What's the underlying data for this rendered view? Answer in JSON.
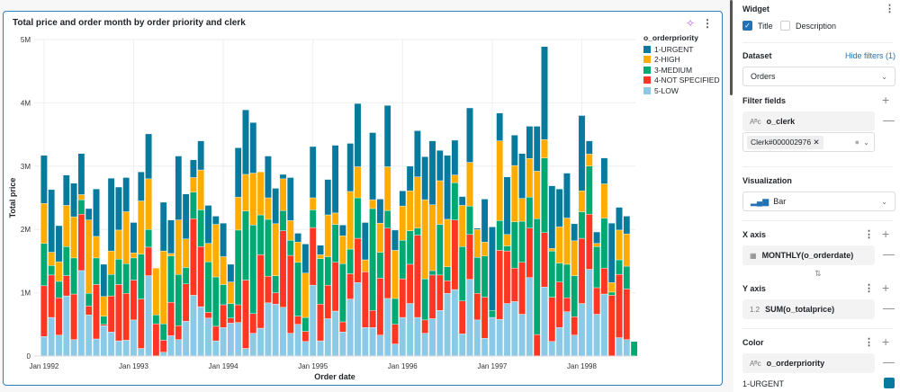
{
  "widget": {
    "title": "Total price and order month by order priority and clerk",
    "ai_icon": "sparkle-icon",
    "menu_icon": "kebab-icon"
  },
  "legend": {
    "title": "o_orderpriority",
    "items": [
      {
        "label": "1-URGENT",
        "color": "#077A9D"
      },
      {
        "label": "2-HIGH",
        "color": "#FFAB00"
      },
      {
        "label": "3-MEDIUM",
        "color": "#00A972"
      },
      {
        "label": "4-NOT SPECIFIED",
        "color": "#FF3621"
      },
      {
        "label": "5-LOW",
        "color": "#8BCAE7"
      }
    ]
  },
  "chart_data": {
    "type": "bar",
    "stacked": true,
    "xlabel": "Order date",
    "ylabel": "Total price",
    "ylim": [
      0,
      5000000
    ],
    "yticks": [
      "0",
      "1M",
      "2M",
      "3M",
      "4M",
      "5M"
    ],
    "xticks": [
      "Jan 1992",
      "Jan 1993",
      "Jan 1994",
      "Jan 1995",
      "Jan 1996",
      "Jan 1997",
      "Jan 1998"
    ],
    "x_start": "1992-01",
    "x_end": "1998-08",
    "x_unit": "month",
    "grid": true,
    "legend": "top-right",
    "series_order_bottom_to_top": [
      "5-LOW",
      "4-NOT SPECIFIED",
      "3-MEDIUM",
      "2-HIGH",
      "1-URGENT"
    ],
    "values_millions": [
      [
        0.31,
        0.8,
        0.67,
        0.63,
        0.76
      ],
      [
        0.61,
        0.67,
        0.15,
        0.21,
        0.99
      ],
      [
        0.33,
        0.59,
        0.26,
        0.31,
        0.57
      ],
      [
        0.95,
        0.32,
        0.46,
        0.65,
        0.48
      ],
      [
        0.26,
        0.72,
        0.57,
        0.65,
        0.53
      ],
      [
        1.35,
        0.89,
        0.23,
        0.08,
        0.65
      ],
      [
        0.65,
        0.14,
        0.2,
        1.16,
        0.18
      ],
      [
        0.27,
        0.86,
        0.42,
        0.34,
        0.75
      ],
      [
        0.48,
        0.02,
        0.13,
        0.31,
        0.51
      ],
      [
        0.38,
        0.57,
        0.34,
        0.37,
        1.15
      ],
      [
        0.24,
        0.89,
        0.4,
        0.46,
        0.68
      ],
      [
        0.25,
        0.74,
        0.47,
        0.82,
        0.54
      ],
      [
        0.57,
        0.63,
        0.35,
        0.08,
        0.48
      ],
      [
        0.12,
        0.78,
        0.71,
        0.84,
        0.46
      ],
      [
        1.27,
        0.45,
        0.28,
        0.8,
        0.71
      ],
      [
        0,
        0.51,
        0.14,
        0.74,
        0
      ],
      [
        0.06,
        0.19,
        0.26,
        1.15,
        0.77
      ],
      [
        0.32,
        0.53,
        0.73,
        0.04,
        0.53
      ],
      [
        0.26,
        0.22,
        0.81,
        0.86,
        1.01
      ],
      [
        0.55,
        0.59,
        0.26,
        0.45,
        0.71
      ],
      [
        0.96,
        1.21,
        0.42,
        0.23,
        0.28
      ],
      [
        0.78,
        0.95,
        0.58,
        0.63,
        0.46
      ],
      [
        0.6,
        0.09,
        0.8,
        0.29,
        0.6
      ],
      [
        0.24,
        0.23,
        0.78,
        0.83,
        0.13
      ],
      [
        0.45,
        0.36,
        0.32,
        0.44,
        0.53
      ],
      [
        0.52,
        0.08,
        0.23,
        0.34,
        0.28
      ],
      [
        0.53,
        0.28,
        1.18,
        0.52,
        0.78
      ],
      [
        0.12,
        1.08,
        1.09,
        0.58,
        1.02
      ],
      [
        0.36,
        0.31,
        1.4,
        0.82,
        0.8
      ],
      [
        0.44,
        1.16,
        0.63,
        0.68,
        0
      ],
      [
        0.84,
        0.42,
        0.9,
        0.34,
        0.66
      ],
      [
        0.82,
        0.18,
        0.27,
        0.82,
        0.56
      ],
      [
        0.77,
        1.21,
        0.32,
        0.5,
        0.07
      ],
      [
        0.36,
        1.23,
        0.24,
        0.31,
        0.68
      ],
      [
        0.5,
        0.13,
        0.85,
        0.32,
        0.14
      ],
      [
        0.23,
        0.16,
        0.22,
        0.7,
        0.46
      ],
      [
        1.12,
        0.91,
        0.28,
        0.19,
        0.81
      ],
      [
        0.24,
        0.58,
        0.72,
        0.06,
        0.15
      ],
      [
        0.59,
        0.53,
        0.45,
        0.66,
        0.56
      ],
      [
        0.71,
        0.77,
        0.6,
        0.18,
        1.07
      ],
      [
        0.38,
        0.16,
        0.92,
        0.44,
        0.17
      ],
      [
        0.9,
        0.4,
        0.39,
        0.91,
        0.76
      ],
      [
        1.16,
        0.7,
        0.64,
        0.49,
        1.0
      ],
      [
        0.45,
        0.88,
        0,
        0.19,
        0.59
      ],
      [
        0.45,
        0.27,
        1.61,
        0.14,
        1.06
      ],
      [
        0.33,
        0.9,
        0.41,
        0.46,
        0.38
      ],
      [
        0.91,
        1.11,
        0.28,
        0.69,
        0.97
      ],
      [
        0.19,
        0.31,
        0.41,
        0.76,
        0.32
      ],
      [
        0.61,
        0.61,
        0.61,
        0.54,
        0.24
      ],
      [
        0.83,
        0.62,
        0.53,
        0.63,
        0.39
      ],
      [
        0.61,
        1.3,
        0.11,
        0.81,
        0.73
      ],
      [
        0.36,
        0.21,
        0.65,
        1.25,
        0.68
      ],
      [
        0.59,
        0.69,
        0.07,
        1.04,
        1.01
      ],
      [
        0.72,
        0.56,
        0.8,
        0.69,
        0.48
      ],
      [
        0.99,
        0.2,
        0.22,
        0.75,
        1.01
      ],
      [
        1.05,
        1.1,
        0.59,
        0.12,
        0.55
      ],
      [
        0.35,
        0.52,
        0.86,
        0.65,
        0.14
      ],
      [
        1.21,
        0.71,
        0.45,
        0.69,
        0.86
      ],
      [
        0.57,
        0.42,
        0.57,
        0.44,
        0.02
      ],
      [
        0.28,
        0.65,
        0.65,
        0.22,
        0.68
      ],
      [
        0.61,
        0,
        0.11,
        0,
        1.32
      ],
      [
        0.58,
        1.09,
        0.47,
        1.26,
        0.44
      ],
      [
        0.83,
        0.83,
        0.08,
        0.18,
        0.91
      ],
      [
        0.86,
        0.53,
        0.73,
        0.89,
        0.48
      ],
      [
        0.66,
        0.82,
        0.65,
        0.36,
        0.71
      ],
      [
        1.24,
        0.78,
        0.49,
        0.61,
        0.51
      ],
      [
        0,
        0.34,
        1.83,
        0.75,
        0.71
      ],
      [
        1.09,
        0.86,
        1.18,
        0.29,
        1.47
      ],
      [
        0.23,
        0.7,
        0.73,
        0.04,
        0.99
      ],
      [
        0.45,
        0.72,
        0.3,
        0.57,
        0.6
      ],
      [
        0.7,
        0.22,
        0.53,
        0.73,
        0.71
      ],
      [
        0.33,
        0.29,
        0.65,
        0.55,
        0.27
      ],
      [
        0.83,
        1.03,
        0.42,
        0.33,
        1.19
      ],
      [
        1.37,
        0.87,
        0.76,
        0.19,
        0.21
      ],
      [
        0.66,
        0.42,
        0.65,
        0.05,
        0.18
      ],
      [
        0.98,
        0.41,
        0.79,
        0.54,
        0.41
      ],
      [
        0,
        0.96,
        0.05,
        0.15,
        0.94
      ],
      [
        0.29,
        1.0,
        0.23,
        0.47,
        0.36
      ],
      [
        0.26,
        0.8,
        0.36,
        0.51,
        0.28
      ],
      [
        0,
        0,
        0.23,
        0,
        0
      ]
    ]
  },
  "panel": {
    "widget_heading": "Widget",
    "title_checkbox": {
      "label": "Title",
      "checked": true
    },
    "description_checkbox": {
      "label": "Description",
      "checked": false
    },
    "dataset_heading": "Dataset",
    "hide_filters": "Hide filters (1)",
    "dataset_value": "Orders",
    "filter_heading": "Filter fields",
    "filter_field": "o_clerk",
    "filter_value": "Clerk#000002976",
    "viz_heading": "Visualization",
    "viz_value": "Bar",
    "x_heading": "X axis",
    "x_field": "MONTHLY(o_orderdate)",
    "y_heading": "Y axis",
    "y_type": "1.2",
    "y_field": "SUM(o_totalprice)",
    "color_heading": "Color",
    "color_field": "o_orderpriority",
    "color_first": "1-URGENT",
    "color_first_swatch": "#077A9D"
  }
}
